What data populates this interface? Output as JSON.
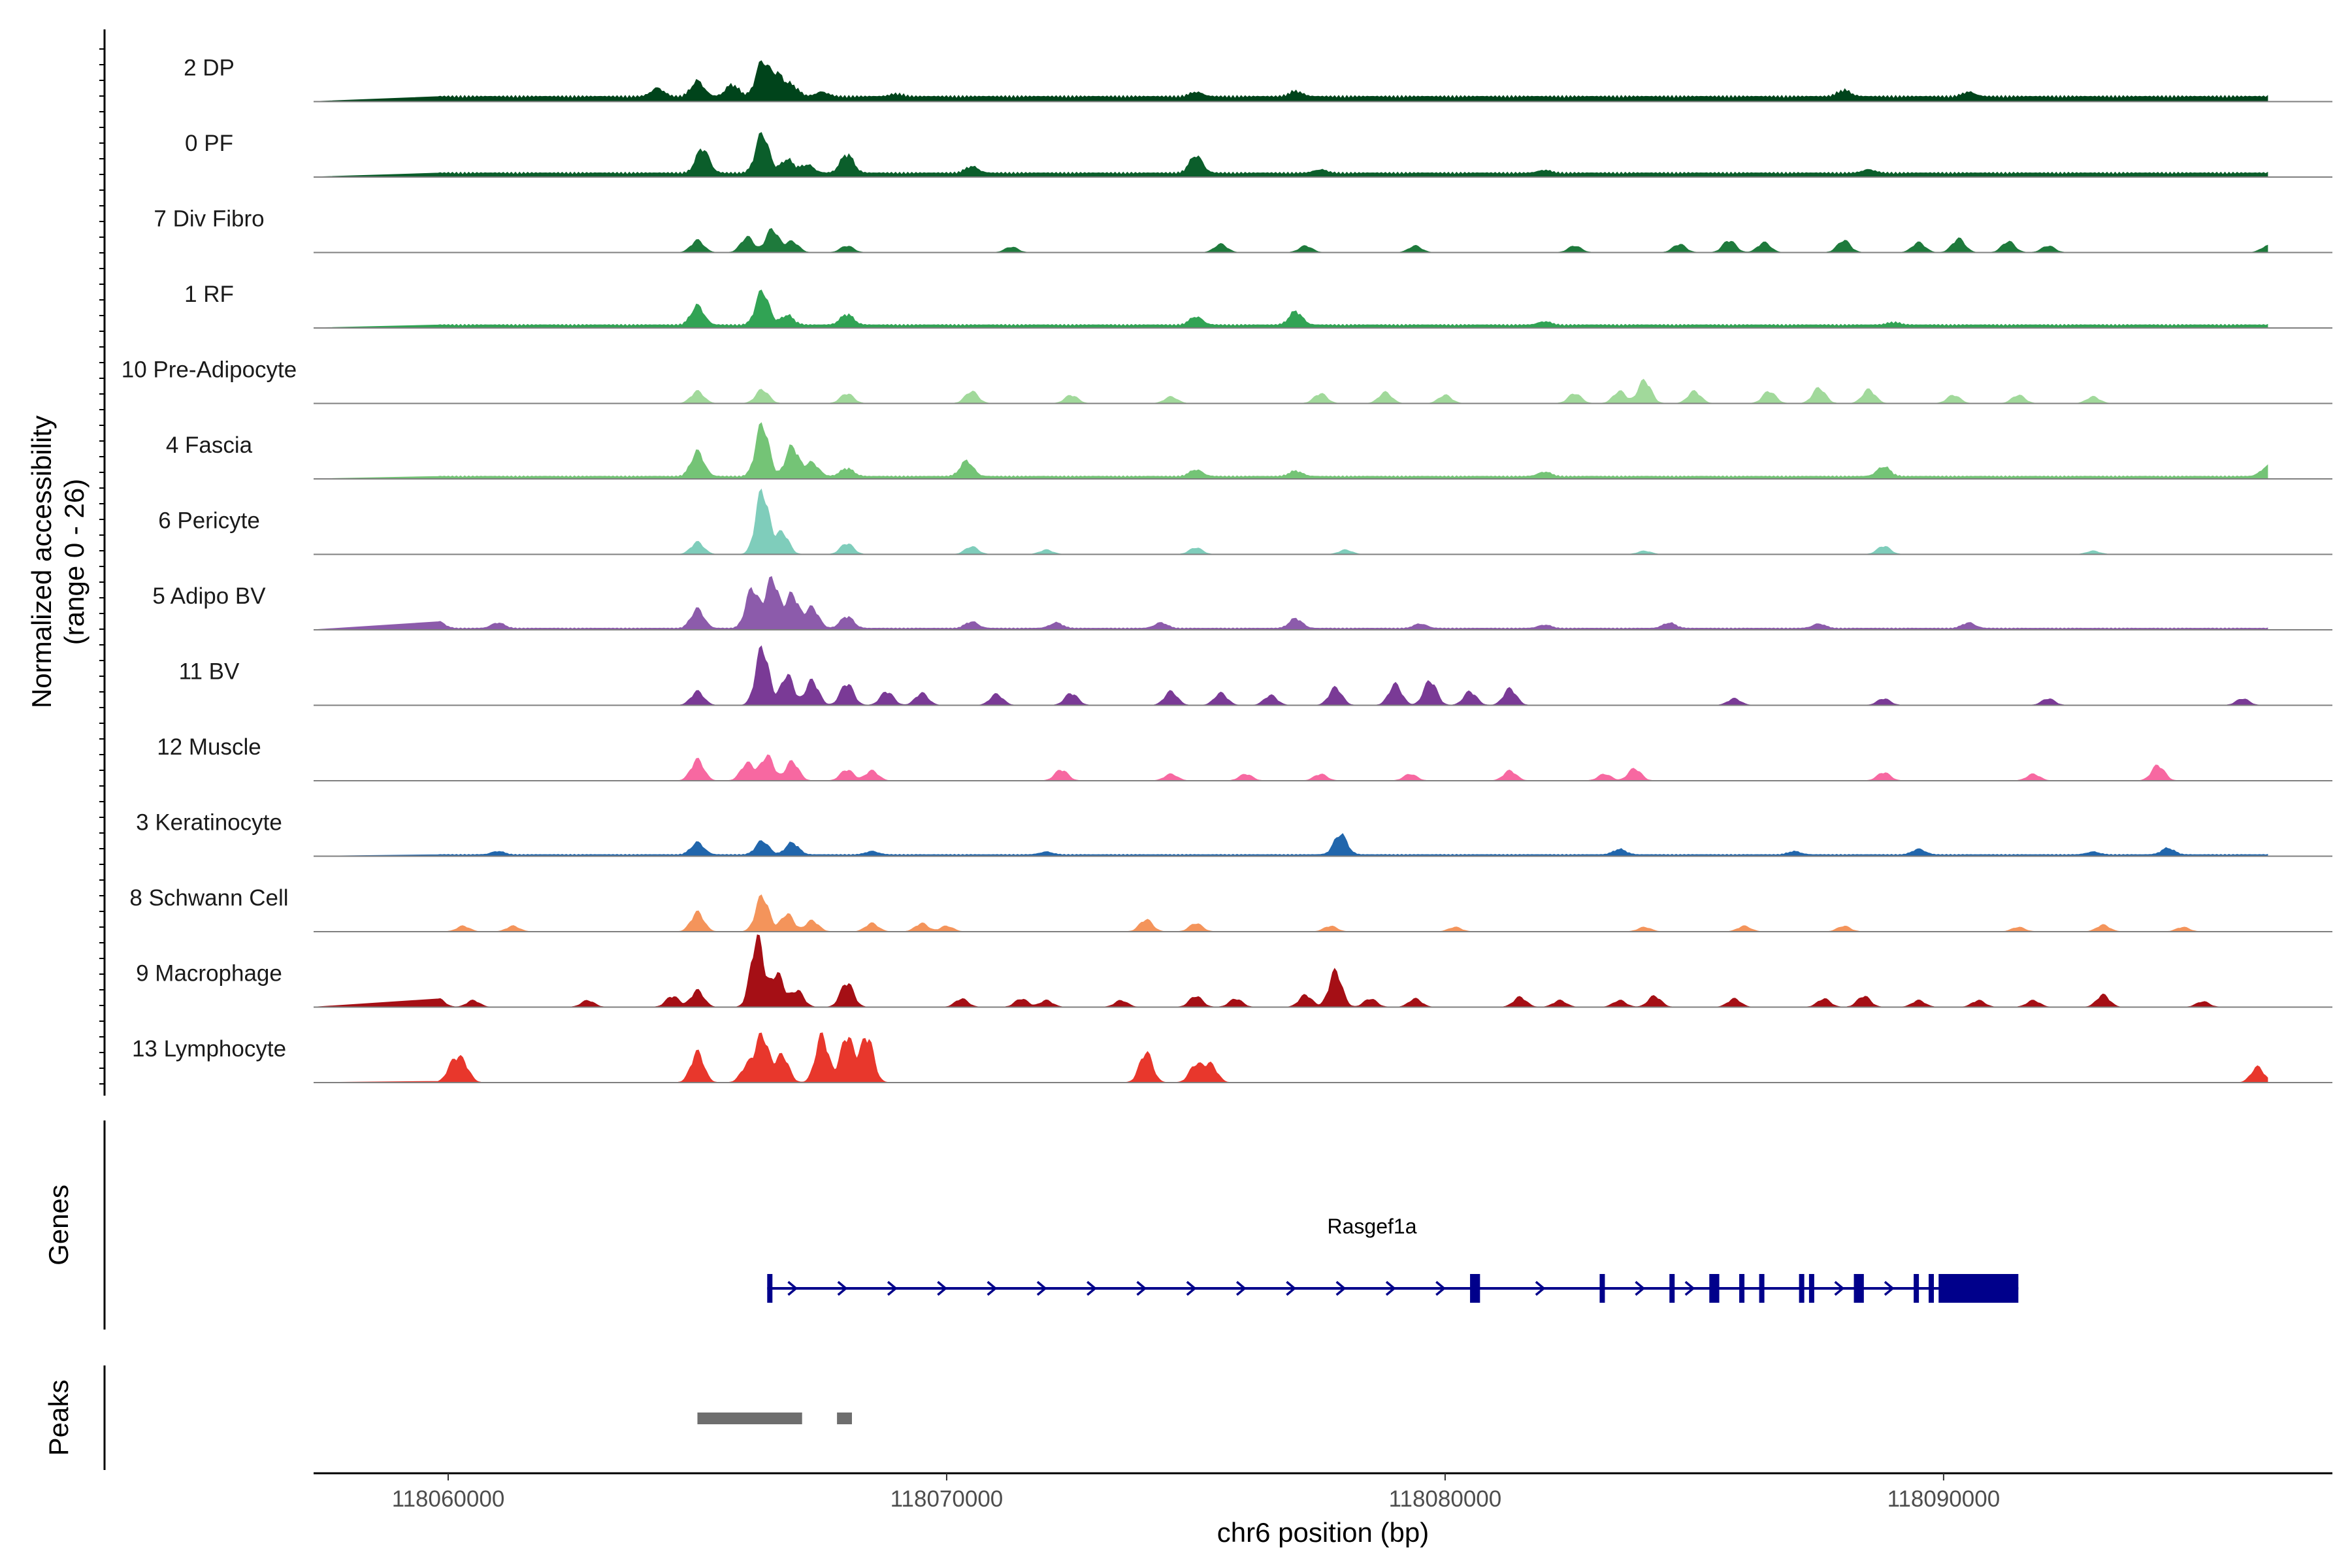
{
  "chart_data": {
    "type": "area",
    "title": "",
    "ylabel": "Normalized accessibility",
    "ylabel_range": "(range 0 - 26)",
    "xlabel": "chr6 position (bp)",
    "xlim": [
      118057300,
      118097800
    ],
    "ylim": [
      0,
      26
    ],
    "x_ticks": [
      118060000,
      118070000,
      118080000,
      118090000
    ],
    "x_tick_labels": [
      "118060000",
      "118070000",
      "118080000",
      "118090000"
    ],
    "tracks": [
      {
        "name": "2 DP",
        "color": "#00441b",
        "baseline": 0.1,
        "peaks": [
          [
            118064.2,
            0.15
          ],
          [
            118065.0,
            0.28
          ],
          [
            118065.7,
            0.22
          ],
          [
            118066.3,
            0.62
          ],
          [
            118066.6,
            0.38
          ],
          [
            118066.9,
            0.2
          ],
          [
            118067.5,
            0.08
          ],
          [
            118069.0,
            0.05
          ],
          [
            118075.0,
            0.08
          ],
          [
            118077.0,
            0.1
          ],
          [
            118088.0,
            0.12
          ],
          [
            118090.5,
            0.08
          ]
        ]
      },
      {
        "name": "0 PF",
        "color": "#0b5e2b",
        "baseline": 0.08,
        "peaks": [
          [
            118065.1,
            0.45
          ],
          [
            118066.3,
            0.72
          ],
          [
            118066.8,
            0.25
          ],
          [
            118067.2,
            0.15
          ],
          [
            118068.0,
            0.35
          ],
          [
            118070.5,
            0.12
          ],
          [
            118075.0,
            0.32
          ],
          [
            118077.5,
            0.06
          ],
          [
            118082.0,
            0.05
          ],
          [
            118088.5,
            0.06
          ]
        ]
      },
      {
        "name": "7 Div Fibro",
        "color": "#1e7a3c",
        "baseline": 0.0,
        "peaks": [
          [
            118065.0,
            0.22
          ],
          [
            118066.0,
            0.28
          ],
          [
            118066.5,
            0.42
          ],
          [
            118066.9,
            0.2
          ],
          [
            118068.0,
            0.12
          ],
          [
            118071.3,
            0.1
          ],
          [
            118075.5,
            0.15
          ],
          [
            118077.2,
            0.12
          ],
          [
            118079.4,
            0.12
          ],
          [
            118082.6,
            0.12
          ],
          [
            118084.7,
            0.15
          ],
          [
            118085.7,
            0.22
          ],
          [
            118086.4,
            0.18
          ],
          [
            118088.0,
            0.22
          ],
          [
            118089.5,
            0.18
          ],
          [
            118090.3,
            0.25
          ],
          [
            118091.3,
            0.2
          ],
          [
            118092.1,
            0.12
          ],
          [
            118096.5,
            0.12
          ]
        ]
      },
      {
        "name": "1 RF",
        "color": "#31a354",
        "baseline": 0.06,
        "peaks": [
          [
            118065.0,
            0.35
          ],
          [
            118066.3,
            0.62
          ],
          [
            118066.8,
            0.18
          ],
          [
            118068.0,
            0.2
          ],
          [
            118075.0,
            0.15
          ],
          [
            118077.0,
            0.25
          ],
          [
            118082.0,
            0.06
          ],
          [
            118089.0,
            0.05
          ]
        ]
      },
      {
        "name": "10 Pre-Adipocyte",
        "color": "#a1d99b",
        "baseline": 0.0,
        "peaks": [
          [
            118065.0,
            0.22
          ],
          [
            118066.3,
            0.25
          ],
          [
            118068.0,
            0.18
          ],
          [
            118070.5,
            0.22
          ],
          [
            118072.5,
            0.15
          ],
          [
            118074.5,
            0.12
          ],
          [
            118077.5,
            0.18
          ],
          [
            118078.8,
            0.2
          ],
          [
            118080.0,
            0.15
          ],
          [
            118082.6,
            0.18
          ],
          [
            118083.5,
            0.22
          ],
          [
            118084.0,
            0.42
          ],
          [
            118085.0,
            0.22
          ],
          [
            118086.5,
            0.22
          ],
          [
            118087.5,
            0.28
          ],
          [
            118088.5,
            0.25
          ],
          [
            118090.2,
            0.15
          ],
          [
            118091.5,
            0.15
          ],
          [
            118093.0,
            0.12
          ]
        ]
      },
      {
        "name": "4 Fascia",
        "color": "#74c476",
        "baseline": 0.05,
        "peaks": [
          [
            118065.0,
            0.45
          ],
          [
            118066.3,
            0.95
          ],
          [
            118066.9,
            0.55
          ],
          [
            118067.3,
            0.25
          ],
          [
            118068.0,
            0.15
          ],
          [
            118070.4,
            0.28
          ],
          [
            118075.0,
            0.12
          ],
          [
            118077.0,
            0.1
          ],
          [
            118082.0,
            0.08
          ],
          [
            118088.8,
            0.18
          ],
          [
            118096.5,
            0.18
          ]
        ]
      },
      {
        "name": "6 Pericyte",
        "color": "#7fcdbb",
        "baseline": 0.0,
        "peaks": [
          [
            118065.0,
            0.22
          ],
          [
            118066.3,
            1.15
          ],
          [
            118066.7,
            0.4
          ],
          [
            118068.0,
            0.2
          ],
          [
            118070.5,
            0.14
          ],
          [
            118072.0,
            0.08
          ],
          [
            118075.0,
            0.12
          ],
          [
            118078.0,
            0.08
          ],
          [
            118084.0,
            0.06
          ],
          [
            118088.8,
            0.15
          ],
          [
            118093.0,
            0.06
          ]
        ]
      },
      {
        "name": "5 Adipo BV",
        "color": "#8c5bab",
        "baseline": 0.03,
        "peaks": [
          [
            118059.8,
            0.12
          ],
          [
            118061.0,
            0.1
          ],
          [
            118065.0,
            0.35
          ],
          [
            118066.1,
            0.72
          ],
          [
            118066.5,
            0.9
          ],
          [
            118066.9,
            0.62
          ],
          [
            118067.3,
            0.38
          ],
          [
            118068.0,
            0.22
          ],
          [
            118070.5,
            0.12
          ],
          [
            118072.2,
            0.1
          ],
          [
            118074.3,
            0.1
          ],
          [
            118077.0,
            0.18
          ],
          [
            118079.5,
            0.08
          ],
          [
            118082.0,
            0.06
          ],
          [
            118084.5,
            0.1
          ],
          [
            118087.5,
            0.08
          ],
          [
            118090.5,
            0.1
          ]
        ]
      },
      {
        "name": "11 BV",
        "color": "#7a3a96",
        "baseline": 0.0,
        "peaks": [
          [
            118065.0,
            0.25
          ],
          [
            118066.3,
            1.05
          ],
          [
            118066.8,
            0.55
          ],
          [
            118067.3,
            0.45
          ],
          [
            118068.0,
            0.4
          ],
          [
            118068.8,
            0.25
          ],
          [
            118069.5,
            0.22
          ],
          [
            118071.0,
            0.2
          ],
          [
            118072.5,
            0.22
          ],
          [
            118074.5,
            0.25
          ],
          [
            118075.5,
            0.22
          ],
          [
            118076.5,
            0.18
          ],
          [
            118077.8,
            0.32
          ],
          [
            118079.0,
            0.38
          ],
          [
            118079.7,
            0.45
          ],
          [
            118080.5,
            0.25
          ],
          [
            118081.3,
            0.3
          ],
          [
            118085.8,
            0.12
          ],
          [
            118088.8,
            0.12
          ],
          [
            118092.1,
            0.12
          ],
          [
            118096.0,
            0.12
          ]
        ]
      },
      {
        "name": "12 Muscle",
        "color": "#f768a1",
        "baseline": 0.0,
        "peaks": [
          [
            118065.0,
            0.38
          ],
          [
            118066.0,
            0.32
          ],
          [
            118066.4,
            0.45
          ],
          [
            118066.9,
            0.35
          ],
          [
            118068.0,
            0.2
          ],
          [
            118068.5,
            0.18
          ],
          [
            118072.3,
            0.2
          ],
          [
            118074.5,
            0.12
          ],
          [
            118076.0,
            0.12
          ],
          [
            118077.5,
            0.12
          ],
          [
            118079.3,
            0.12
          ],
          [
            118081.3,
            0.18
          ],
          [
            118083.2,
            0.12
          ],
          [
            118083.8,
            0.22
          ],
          [
            118088.8,
            0.15
          ],
          [
            118091.8,
            0.12
          ],
          [
            118094.3,
            0.28
          ]
        ]
      },
      {
        "name": "3 Keratinocyte",
        "color": "#2166ac",
        "baseline": 0.03,
        "peaks": [
          [
            118061.0,
            0.06
          ],
          [
            118065.0,
            0.22
          ],
          [
            118066.3,
            0.25
          ],
          [
            118066.9,
            0.22
          ],
          [
            118068.5,
            0.06
          ],
          [
            118072.0,
            0.05
          ],
          [
            118077.9,
            0.38
          ],
          [
            118083.5,
            0.1
          ],
          [
            118087.0,
            0.06
          ],
          [
            118089.5,
            0.1
          ],
          [
            118093.0,
            0.05
          ],
          [
            118094.5,
            0.12
          ]
        ]
      },
      {
        "name": "8 Schwann Cell",
        "color": "#f4945b",
        "baseline": 0.0,
        "peaks": [
          [
            118060.3,
            0.1
          ],
          [
            118061.3,
            0.1
          ],
          [
            118065.0,
            0.35
          ],
          [
            118066.3,
            0.65
          ],
          [
            118066.8,
            0.32
          ],
          [
            118067.3,
            0.2
          ],
          [
            118068.5,
            0.15
          ],
          [
            118069.5,
            0.15
          ],
          [
            118070.0,
            0.1
          ],
          [
            118074.0,
            0.22
          ],
          [
            118075.0,
            0.15
          ],
          [
            118077.7,
            0.1
          ],
          [
            118080.2,
            0.08
          ],
          [
            118084.0,
            0.08
          ],
          [
            118086.0,
            0.1
          ],
          [
            118088.0,
            0.1
          ],
          [
            118091.5,
            0.08
          ],
          [
            118093.2,
            0.12
          ],
          [
            118094.8,
            0.08
          ]
        ]
      },
      {
        "name": "9 Macrophage",
        "color": "#a50f15",
        "baseline": 0.0,
        "peaks": [
          [
            118059.8,
            0.15
          ],
          [
            118060.5,
            0.12
          ],
          [
            118062.8,
            0.12
          ],
          [
            118064.5,
            0.2
          ],
          [
            118065.0,
            0.3
          ],
          [
            118066.2,
            1.25
          ],
          [
            118066.6,
            0.6
          ],
          [
            118067.0,
            0.3
          ],
          [
            118068.0,
            0.45
          ],
          [
            118070.3,
            0.15
          ],
          [
            118071.5,
            0.15
          ],
          [
            118072.0,
            0.12
          ],
          [
            118073.5,
            0.12
          ],
          [
            118075.0,
            0.2
          ],
          [
            118075.8,
            0.15
          ],
          [
            118077.2,
            0.22
          ],
          [
            118077.8,
            0.65
          ],
          [
            118078.5,
            0.15
          ],
          [
            118079.4,
            0.15
          ],
          [
            118081.5,
            0.18
          ],
          [
            118082.3,
            0.12
          ],
          [
            118083.5,
            0.12
          ],
          [
            118084.2,
            0.2
          ],
          [
            118085.8,
            0.15
          ],
          [
            118087.6,
            0.15
          ],
          [
            118088.4,
            0.2
          ],
          [
            118089.5,
            0.12
          ],
          [
            118090.7,
            0.12
          ],
          [
            118091.8,
            0.12
          ],
          [
            118093.2,
            0.22
          ],
          [
            118095.2,
            0.1
          ]
        ]
      },
      {
        "name": "13 Lymphocyte",
        "color": "#e8372c",
        "baseline": 0.0,
        "peaks": [
          [
            118060.1,
            0.32
          ],
          [
            118060.3,
            0.32
          ],
          [
            118065.0,
            0.55
          ],
          [
            118066.0,
            0.3
          ],
          [
            118066.3,
            0.85
          ],
          [
            118066.7,
            0.5
          ],
          [
            118067.5,
            0.85
          ],
          [
            118068.0,
            0.85
          ],
          [
            118068.4,
            0.85
          ],
          [
            118074.0,
            0.55
          ],
          [
            118075.0,
            0.32
          ],
          [
            118075.3,
            0.32
          ],
          [
            118096.3,
            0.28
          ]
        ]
      }
    ],
    "genes_label": "Genes",
    "gene": {
      "name": "Rasgef1a",
      "start": 118066.4,
      "end": 118091.5,
      "strand": "+",
      "color": "#00008b",
      "exons": [
        [
          118066.4,
          118066.5
        ],
        [
          118080.5,
          118080.7
        ],
        [
          118083.1,
          118083.2
        ],
        [
          118084.5,
          118084.6
        ],
        [
          118085.3,
          118085.5
        ],
        [
          118085.9,
          118086.0
        ],
        [
          118086.3,
          118086.4
        ],
        [
          118087.1,
          118087.2
        ],
        [
          118087.3,
          118087.4
        ],
        [
          118088.2,
          118088.4
        ],
        [
          118089.4,
          118089.5
        ],
        [
          118089.7,
          118089.8
        ],
        [
          118089.9,
          118091.5
        ]
      ],
      "utr3": [
        118089.9,
        118091.5
      ]
    },
    "peaks_label": "Peaks",
    "peak_regions": [
      [
        118065.0,
        118067.1
      ],
      [
        118067.8,
        118068.1
      ]
    ]
  }
}
